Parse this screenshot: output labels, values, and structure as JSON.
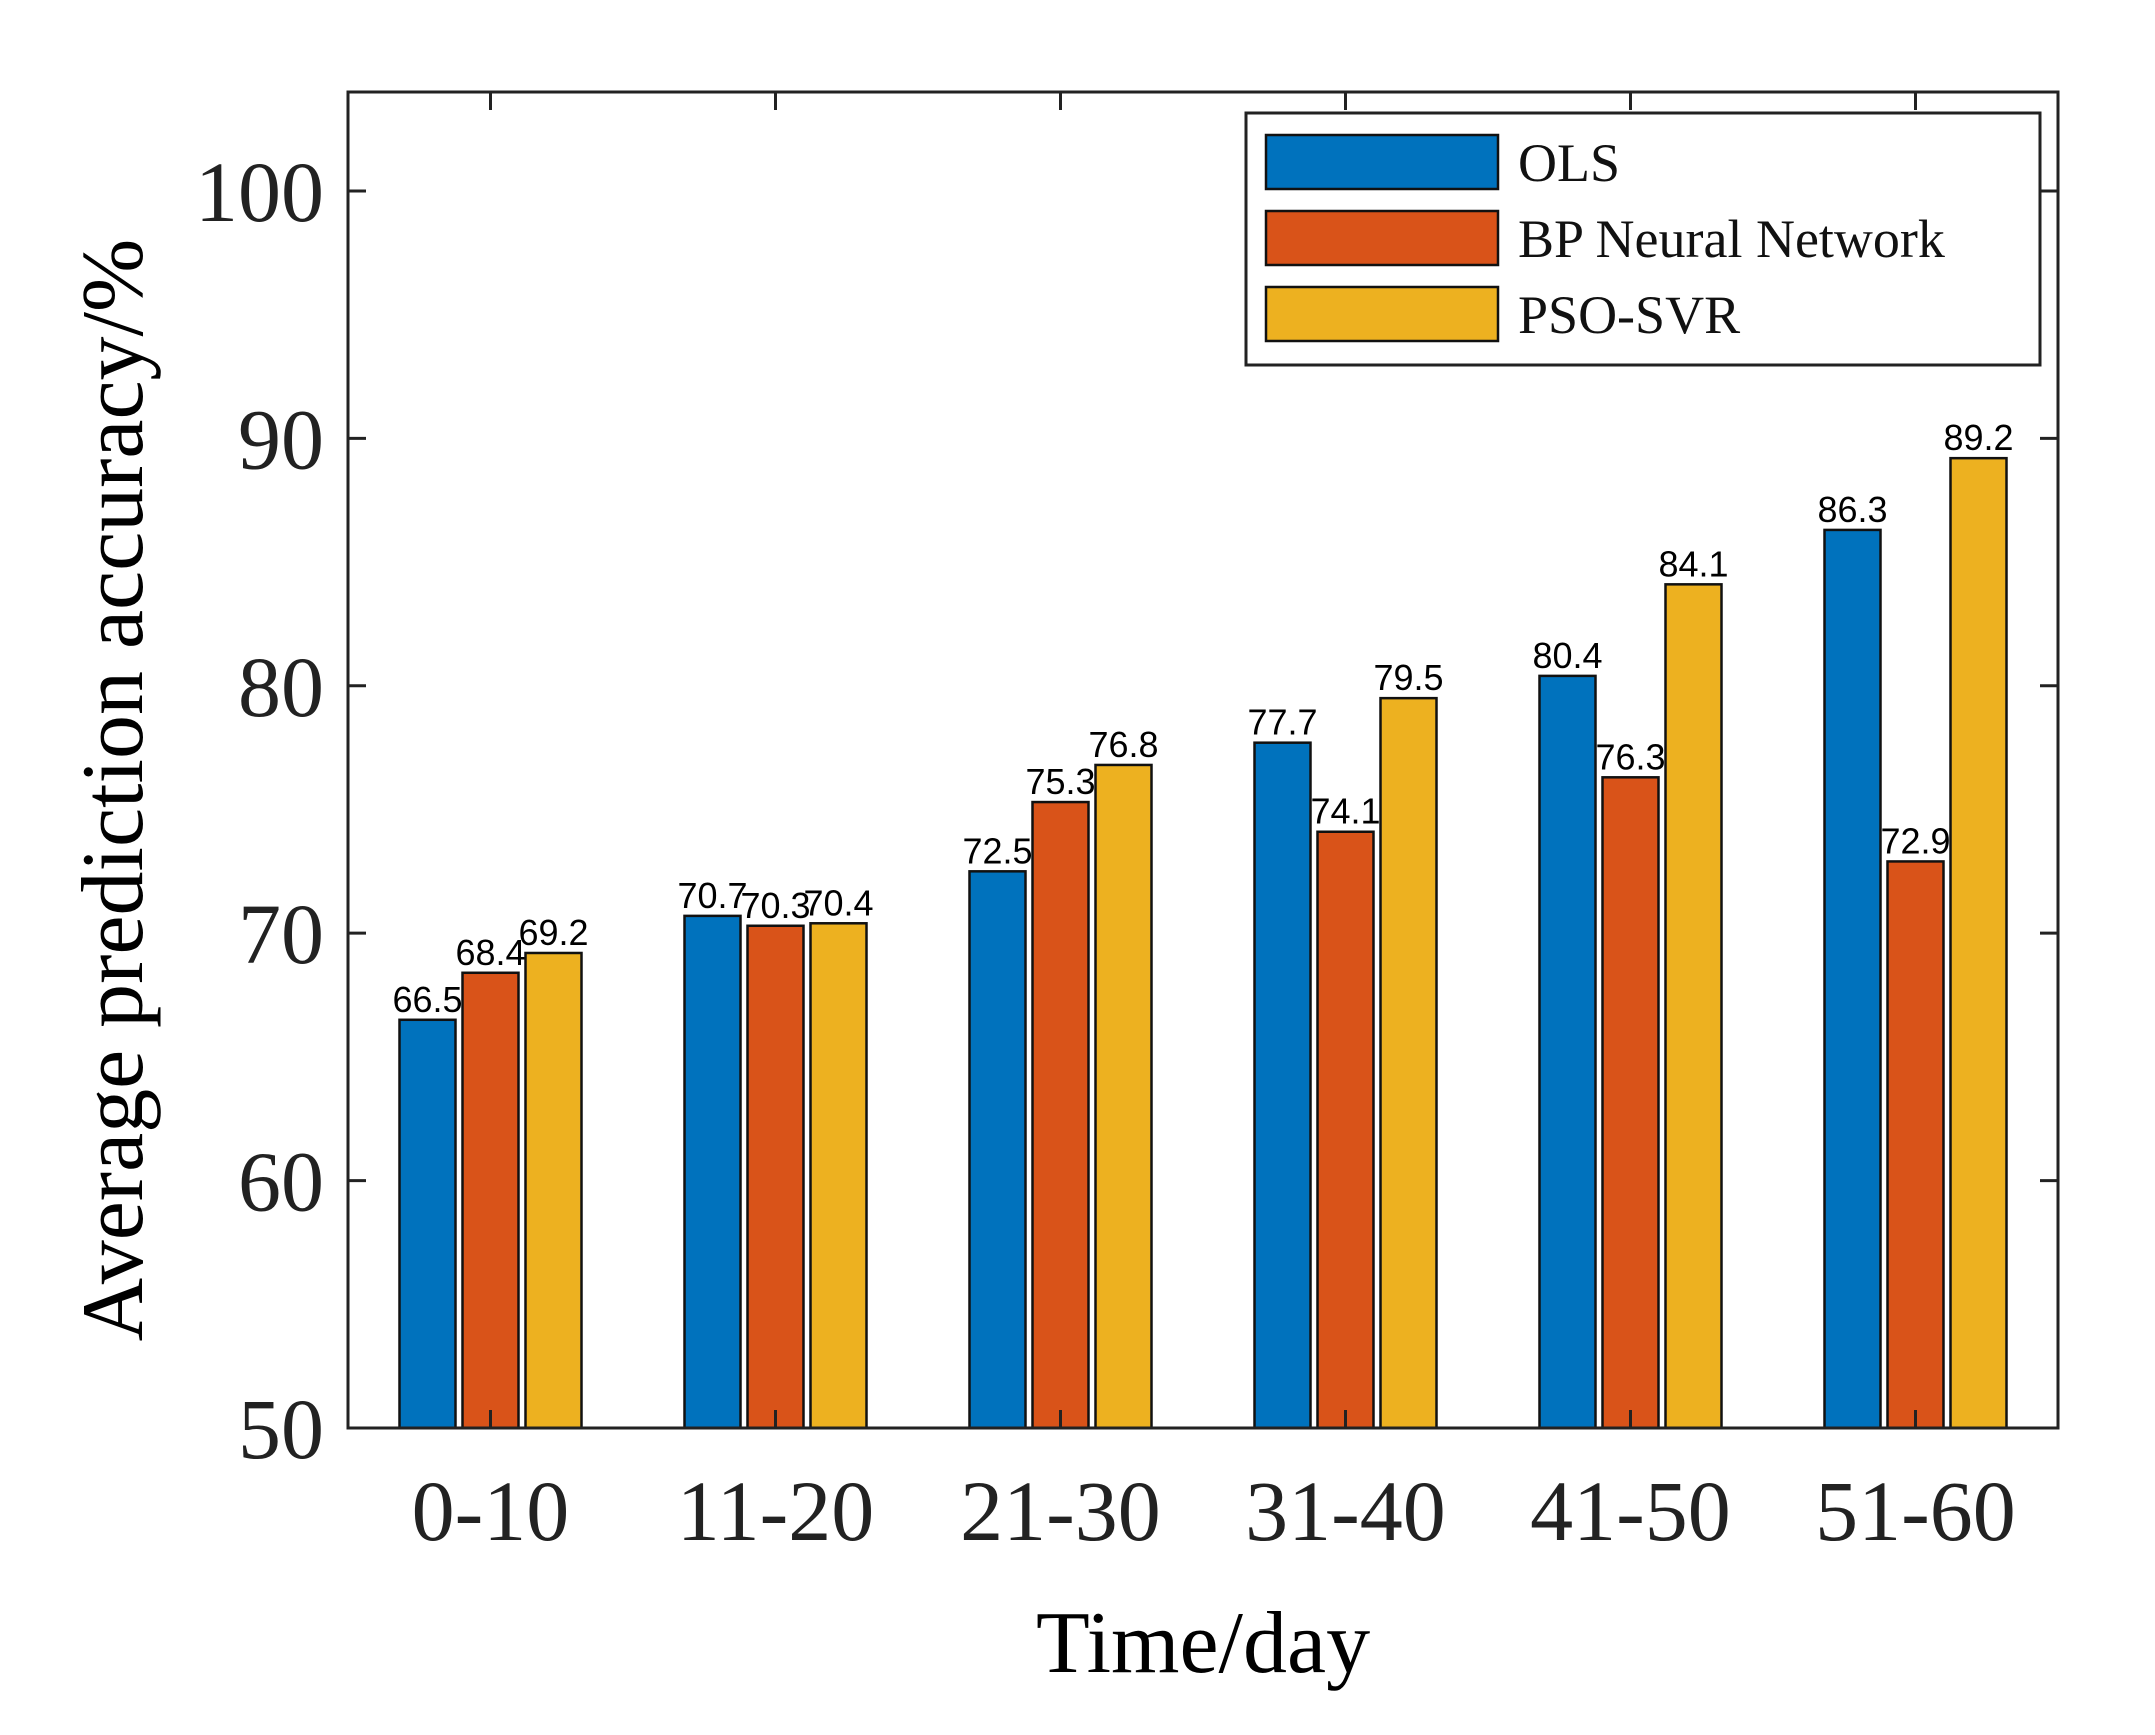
{
  "chart_data": {
    "type": "bar",
    "title": "",
    "xlabel": "Time/day",
    "ylabel": "Average prediction accuracy/%",
    "categories": [
      "0-10",
      "11-20",
      "21-30",
      "31-40",
      "41-50",
      "51-60"
    ],
    "series": [
      {
        "name": "OLS",
        "color": "#0072BD",
        "values": [
          66.5,
          70.7,
          72.5,
          77.7,
          80.4,
          86.3
        ]
      },
      {
        "name": "BP Neural Network",
        "color": "#D95319",
        "values": [
          68.4,
          70.3,
          75.3,
          74.1,
          76.3,
          72.9
        ]
      },
      {
        "name": "PSO-SVR",
        "color": "#EDB120",
        "values": [
          69.2,
          70.4,
          76.8,
          79.5,
          84.1,
          89.2
        ]
      }
    ],
    "data_labels": [
      [
        "66.5",
        "70.7",
        "72.5",
        "77.7",
        "80.4",
        "86.3"
      ],
      [
        "68.4",
        "70.3",
        "75.3",
        "74.1",
        "76.3",
        "72.9"
      ],
      [
        "69.2",
        "70.4",
        "76.8",
        "79.5",
        "84.1",
        "89.2"
      ]
    ],
    "ylim": [
      50,
      104
    ],
    "yticks": [
      50,
      60,
      70,
      80,
      90,
      100
    ],
    "ytick_labels": [
      "50",
      "60",
      "70",
      "80",
      "90",
      "100"
    ],
    "grid": false,
    "legend_position": "top-right"
  }
}
